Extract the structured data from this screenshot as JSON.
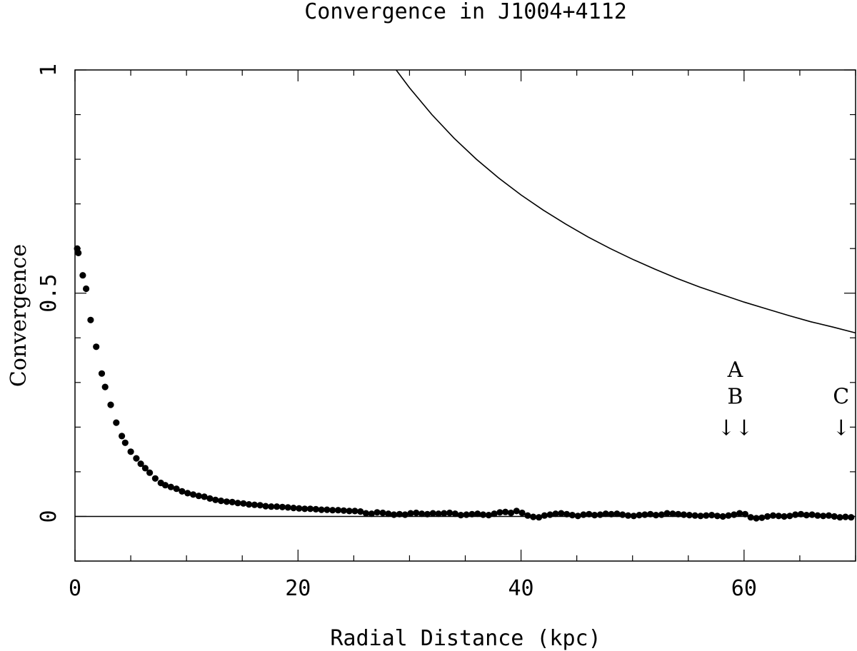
{
  "chart_data": {
    "type": "scatter",
    "title": "Convergence in J1004+4112",
    "xlabel": "Radial Distance (kpc)",
    "ylabel": "Convergence",
    "xlim": [
      0,
      70
    ],
    "ylim": [
      -0.1,
      1.0
    ],
    "x_ticks": [
      0,
      20,
      40,
      60
    ],
    "x_tick_labels": [
      "0",
      "20",
      "40",
      "60"
    ],
    "y_ticks": [
      0,
      0.5,
      1
    ],
    "y_tick_labels": [
      "0",
      "0.5",
      "1"
    ],
    "grid": false,
    "reference_line": {
      "y": 0
    },
    "series": [
      {
        "style": "points",
        "x": [
          0.2,
          0.3,
          0.7,
          1.0,
          1.4,
          1.9,
          2.4,
          2.7,
          3.2,
          3.7,
          4.2,
          4.5,
          5.0,
          5.5,
          5.9,
          6.3,
          6.7,
          7.2,
          7.7,
          8.1,
          8.6,
          9.1,
          9.6,
          10.1,
          10.6,
          11.1,
          11.6,
          12.1,
          12.6,
          13.1,
          13.6,
          14.1,
          14.6,
          15.1,
          15.6,
          16.1,
          16.6,
          17.1,
          17.6,
          18.1,
          18.6,
          19.1,
          19.6,
          20.1,
          20.6,
          21.1,
          21.6,
          22.1,
          22.6,
          23.1,
          23.6,
          24.1,
          24.6,
          25.1,
          25.6,
          26.1,
          26.6,
          27.1,
          27.6,
          28.1,
          28.6,
          29.1,
          29.6,
          30.1,
          30.6,
          31.1,
          31.6,
          32.1,
          32.6,
          33.1,
          33.6,
          34.1,
          34.6,
          35.1,
          35.6,
          36.1,
          36.6,
          37.1,
          37.6,
          38.1,
          38.6,
          39.1,
          39.6,
          40.1,
          40.6,
          41.1,
          41.6,
          42.1,
          42.6,
          43.1,
          43.6,
          44.1,
          44.6,
          45.1,
          45.6,
          46.1,
          46.6,
          47.1,
          47.6,
          48.1,
          48.6,
          49.1,
          49.6,
          50.1,
          50.6,
          51.1,
          51.6,
          52.1,
          52.6,
          53.1,
          53.6,
          54.1,
          54.6,
          55.1,
          55.6,
          56.1,
          56.6,
          57.1,
          57.6,
          58.1,
          58.6,
          59.1,
          59.6,
          60.1,
          60.6,
          61.1,
          61.6,
          62.1,
          62.6,
          63.1,
          63.6,
          64.1,
          64.6,
          65.1,
          65.6,
          66.1,
          66.6,
          67.1,
          67.6,
          68.1,
          68.6,
          69.1,
          69.6
        ],
        "y": [
          0.6,
          0.59,
          0.54,
          0.51,
          0.44,
          0.38,
          0.32,
          0.29,
          0.25,
          0.21,
          0.18,
          0.165,
          0.145,
          0.13,
          0.118,
          0.108,
          0.098,
          0.085,
          0.075,
          0.07,
          0.066,
          0.062,
          0.056,
          0.052,
          0.049,
          0.046,
          0.044,
          0.04,
          0.037,
          0.035,
          0.033,
          0.032,
          0.03,
          0.029,
          0.027,
          0.026,
          0.025,
          0.023,
          0.022,
          0.022,
          0.021,
          0.02,
          0.019,
          0.018,
          0.017,
          0.017,
          0.016,
          0.015,
          0.015,
          0.014,
          0.014,
          0.013,
          0.012,
          0.012,
          0.011,
          0.007,
          0.006,
          0.009,
          0.008,
          0.006,
          0.004,
          0.005,
          0.004,
          0.007,
          0.008,
          0.006,
          0.005,
          0.007,
          0.006,
          0.007,
          0.008,
          0.006,
          0.003,
          0.004,
          0.005,
          0.006,
          0.004,
          0.003,
          0.006,
          0.009,
          0.01,
          0.008,
          0.012,
          0.008,
          0.002,
          -0.001,
          -0.002,
          0.002,
          0.004,
          0.006,
          0.007,
          0.005,
          0.003,
          0.001,
          0.004,
          0.005,
          0.003,
          0.004,
          0.006,
          0.005,
          0.006,
          0.004,
          0.002,
          0.001,
          0.003,
          0.004,
          0.005,
          0.003,
          0.004,
          0.007,
          0.006,
          0.005,
          0.004,
          0.003,
          0.002,
          0.001,
          0.002,
          0.003,
          0.001,
          0.0,
          0.002,
          0.004,
          0.007,
          0.005,
          -0.002,
          -0.004,
          -0.003,
          0.0,
          0.002,
          0.001,
          0.0,
          0.001,
          0.004,
          0.005,
          0.003,
          0.004,
          0.002,
          0.001,
          0.002,
          0.0,
          -0.002,
          -0.001,
          -0.002
        ]
      },
      {
        "style": "line",
        "x": [
          28.8,
          30,
          32,
          34,
          36,
          38,
          40,
          42,
          44,
          46,
          48,
          50,
          52,
          54,
          56,
          58,
          60,
          62,
          64,
          66,
          68,
          70
        ],
        "y": [
          1.0,
          0.96,
          0.9,
          0.847,
          0.8,
          0.758,
          0.72,
          0.686,
          0.655,
          0.626,
          0.6,
          0.576,
          0.554,
          0.533,
          0.514,
          0.497,
          0.48,
          0.465,
          0.45,
          0.436,
          0.424,
          0.411
        ]
      }
    ],
    "annotations": [
      {
        "text": "A",
        "x": 59.2,
        "y": 0.33
      },
      {
        "text": "B",
        "x": 59.2,
        "y": 0.27
      },
      {
        "text": "↓↓",
        "x": 59.2,
        "y": 0.2
      },
      {
        "text": "C",
        "x": 68.7,
        "y": 0.27
      },
      {
        "text": "↓",
        "x": 68.7,
        "y": 0.2
      }
    ]
  }
}
